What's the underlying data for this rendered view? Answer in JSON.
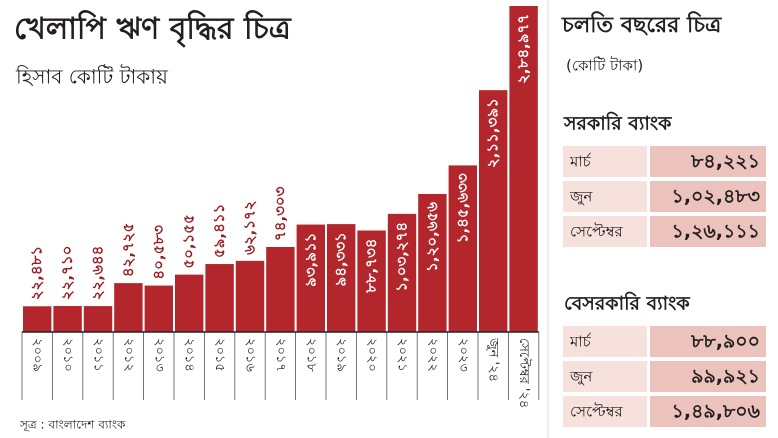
{
  "chart_data": {
    "type": "bar",
    "title": "খেলাপি ঋণ বৃদ্ধির চিত্র",
    "subtitle": "হিসাব কোটি টাকায়",
    "source": "সূত্র : বাংলাদেশ ব্যাংক",
    "color": "#b3262c",
    "categories": [
      "২০০৯",
      "২০১০",
      "২০১১",
      "২০১২",
      "২০১৩",
      "২০১৪",
      "২০১৫",
      "২০১৬",
      "২০১৭",
      "২০১৮",
      "২০১৯",
      "২০২০",
      "২০২১",
      "২০২২",
      "২০২৩",
      "জুন '২৪",
      "সেপ্টেম্বর '২৪"
    ],
    "values": [
      22481,
      22710,
      22644,
      42725,
      40583,
      50155,
      59411,
      62172,
      74303,
      93911,
      94331,
      88734,
      103274,
      120656,
      145633,
      211391,
      284977
    ],
    "value_labels": [
      "২২,৪৮১",
      "২২,৭১০",
      "২২,৬৪৪",
      "৪২,৭২৫",
      "৪০,৫৮৩",
      "৫০,১৫৫",
      "৫৯,৪১১",
      "৬২,১৭২",
      "৭৪,৩০৩",
      "৯৩,৯১১",
      "৯৪,৩৩১",
      "৮৮,৭৩৪",
      "১,০৩,২৭৪",
      "১,২০,৬৫৬",
      "১,৪৫,৬৩৩",
      "২,১১,৩৯১",
      "২,৮৪,৯৭৭"
    ]
  },
  "panel": {
    "title": "চলতি বছরের চিত্র",
    "unit": "(কোটি টাকা)",
    "groups": [
      {
        "name": "সরকারি ব্যাংক",
        "rows": [
          [
            "মার্চ",
            "৮৪,২২১"
          ],
          [
            "জুন",
            "১,০২,৪৮৩"
          ],
          [
            "সেপ্টেম্বর",
            "১,২৬,১১১"
          ]
        ]
      },
      {
        "name": "বেসরকারি ব্যাংক",
        "rows": [
          [
            "মার্চ",
            "৮৮,৯০০"
          ],
          [
            "জুন",
            "৯৯,৯২১"
          ],
          [
            "সেপ্টেম্বর",
            "১,৪৯,৮০৬"
          ]
        ]
      }
    ]
  }
}
